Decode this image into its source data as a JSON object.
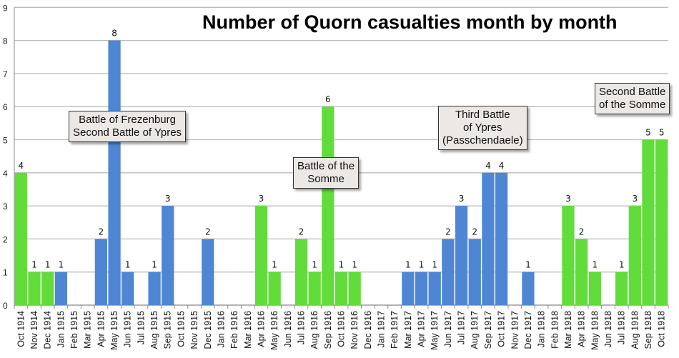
{
  "chart_data": {
    "type": "bar",
    "title": "Number of Quorn casualties month by month",
    "xlabel": "",
    "ylabel": "",
    "ylim": [
      0,
      9
    ],
    "yticks": [
      0,
      1,
      2,
      3,
      4,
      5,
      6,
      7,
      8,
      9
    ],
    "grid": true,
    "legend": "none",
    "colors": {
      "green": "#62dc3a",
      "blue": "#4f86d4"
    },
    "categories": [
      "Oct 1914",
      "Nov 1914",
      "Dec 1914",
      "Jan 1915",
      "Feb 1915",
      "Mar 1915",
      "Apr 1915",
      "May 1915",
      "Jun 1915",
      "Jul 1915",
      "Aug 1915",
      "Sep 1915",
      "Oct 1915",
      "Nov 1915",
      "Dec 1915",
      "Jan 1916",
      "Feb 1916",
      "Mar 1916",
      "Apr 1916",
      "May 1916",
      "Jun 1916",
      "Jul 1916",
      "Aug 1916",
      "Sep 1916",
      "Oct 1916",
      "Nov 1916",
      "Dec 1916",
      "Jan 1917",
      "Feb 1917",
      "Mar 1917",
      "Apr 1917",
      "May 1917",
      "Jun 1917",
      "Jul 1917",
      "Aug 1917",
      "Sep 1917",
      "Oct 1917",
      "Nov 1917",
      "Dec 1917",
      "Jan 1918",
      "Feb 1918",
      "Mar 1918",
      "Apr 1918",
      "May 1918",
      "Jun 1918",
      "Jul 1918",
      "Aug 1918",
      "Sep 1918",
      "Oct 1918"
    ],
    "values": [
      4,
      1,
      1,
      1,
      0,
      0,
      2,
      8,
      1,
      0,
      1,
      3,
      0,
      0,
      2,
      0,
      0,
      0,
      3,
      1,
      0,
      2,
      1,
      6,
      1,
      1,
      0,
      0,
      0,
      1,
      1,
      1,
      2,
      3,
      2,
      4,
      4,
      0,
      1,
      0,
      0,
      3,
      2,
      1,
      0,
      1,
      3,
      5,
      5
    ],
    "bar_colors": [
      "green",
      "green",
      "green",
      "blue",
      "",
      "",
      "blue",
      "blue",
      "blue",
      "",
      "blue",
      "blue",
      "",
      "",
      "blue",
      "",
      "",
      "",
      "green",
      "green",
      "",
      "green",
      "green",
      "green",
      "green",
      "green",
      "",
      "",
      "",
      "blue",
      "blue",
      "blue",
      "blue",
      "blue",
      "blue",
      "blue",
      "blue",
      "",
      "blue",
      "",
      "",
      "green",
      "green",
      "green",
      "",
      "green",
      "green",
      "green",
      "green"
    ],
    "annotations": [
      {
        "text": "Battle of Frezenburg\nSecond Battle of Ypres"
      },
      {
        "text": "Battle of the\nSomme"
      },
      {
        "text": "Third Battle\nof Ypres\n(Passchendaele)"
      },
      {
        "text": "Second Battle\nof the Somme"
      }
    ]
  }
}
